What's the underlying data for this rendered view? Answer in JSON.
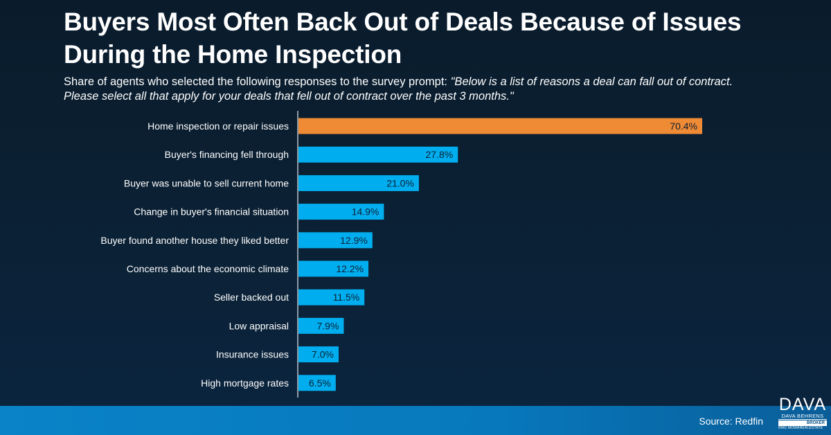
{
  "header": {
    "title": "Buyers Most Often Back Out of Deals Because of Issues During the Home Inspection",
    "subtitle_plain": "Share of agents who selected the following responses to the survey prompt: ",
    "subtitle_quote": "\"Below is a list of reasons a deal can fall out of contract. Please select all that apply for your deals that fell out of contract over the past 3 months.\""
  },
  "footer": {
    "source": "Source: Redfin"
  },
  "logo": {
    "mark": "DAVA",
    "name": "DAVA BEHRENS",
    "role": "BROKER",
    "tagline": "RMG MOWAREALESTATE"
  },
  "colors": {
    "highlight": "#ef8a35",
    "bar": "#00aeef",
    "axis": "#b9c3cc",
    "value_label": "#0b1f33",
    "category_label": "#ffffff"
  },
  "chart_data": {
    "type": "bar",
    "orientation": "horizontal",
    "title": "Buyers Most Often Back Out of Deals Because of Issues During the Home Inspection",
    "xlabel": "",
    "ylabel": "",
    "xlim": [
      0,
      100
    ],
    "grid": false,
    "value_suffix": "%",
    "categories": [
      "Home inspection or repair issues",
      "Buyer's financing fell through",
      "Buyer was unable to sell current home",
      "Change in buyer's financial situation",
      "Buyer found another house they liked better",
      "Concerns about the economic climate",
      "Seller backed out",
      "Low appraisal",
      "Insurance issues",
      "High mortgage rates"
    ],
    "values": [
      70.4,
      27.8,
      21.0,
      14.9,
      12.9,
      12.2,
      11.5,
      7.9,
      7.0,
      6.5
    ],
    "value_labels": [
      "70.4%",
      "27.8%",
      "21.0%",
      "14.9%",
      "12.9%",
      "12.2%",
      "11.5%",
      "7.9%",
      "7.0%",
      "6.5%"
    ],
    "highlighted_index": 0
  }
}
